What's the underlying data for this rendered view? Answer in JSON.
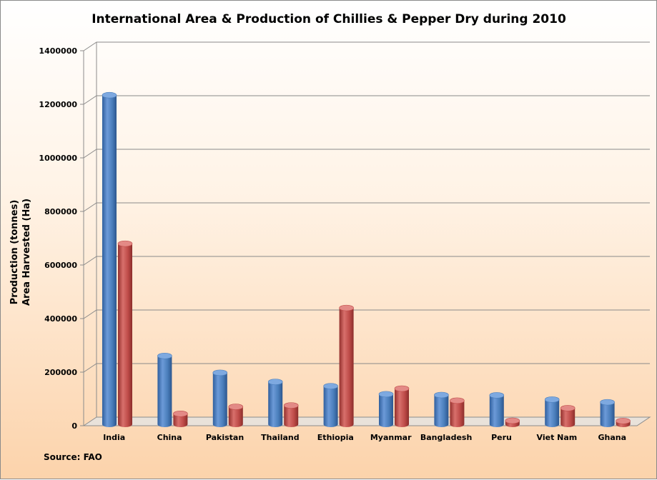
{
  "chart_data": {
    "type": "bar",
    "title": "International Area & Production of Chillies & Pepper Dry during 2010",
    "ylabel_lines": [
      "Production (tonnes)",
      "Area Harvested (Ha)"
    ],
    "source": "Source: FAO",
    "categories": [
      "India",
      "China",
      "Pakistan",
      "Thailand",
      "Ethiopia",
      "Myanmar",
      "Bangladesh",
      "Peru",
      "Viet Nam",
      "Ghana"
    ],
    "series": [
      {
        "color": "#4a7ebb",
        "values": [
          1223400,
          250000,
          187000,
          153000,
          137000,
          107000,
          104000,
          103000,
          87000,
          77000
        ]
      },
      {
        "color": "#be4b48",
        "values": [
          669000,
          34000,
          60000,
          65000,
          429000,
          128000,
          83000,
          8000,
          55000,
          7000
        ]
      }
    ],
    "ylim": [
      0,
      1400000
    ],
    "yticks": [
      "0",
      "200000",
      "400000",
      "600000",
      "800000",
      "1000000",
      "1200000",
      "1400000"
    ],
    "grid": true
  }
}
